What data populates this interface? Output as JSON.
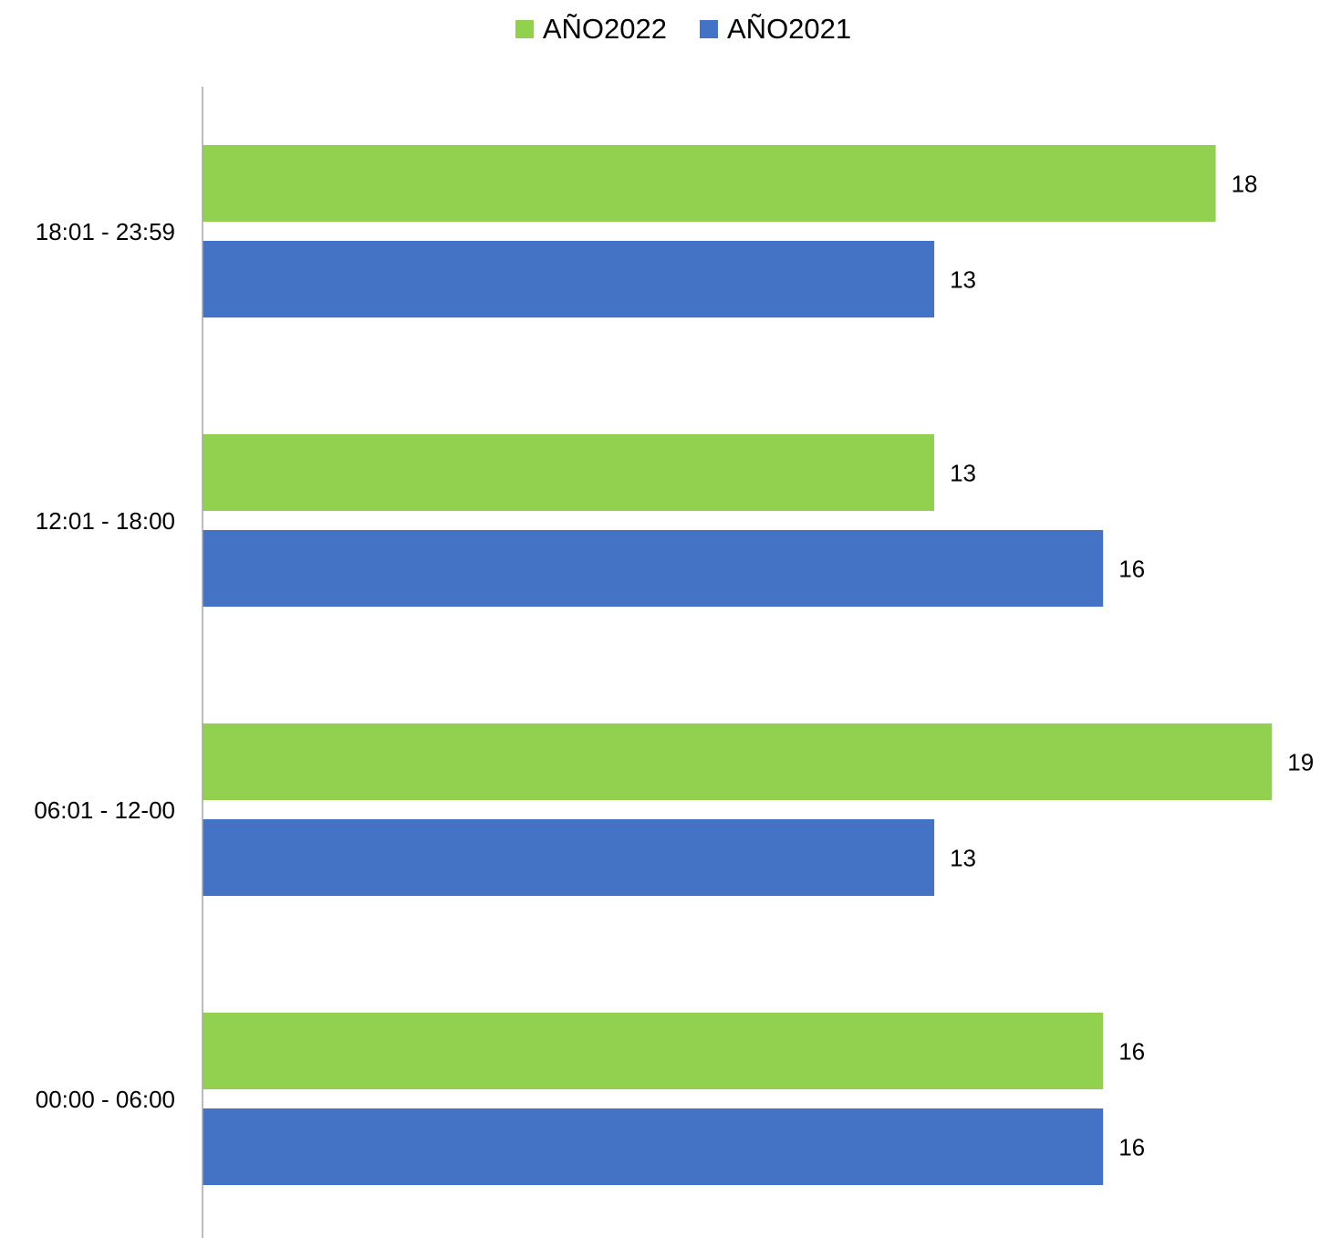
{
  "chart_data": {
    "type": "bar",
    "orientation": "horizontal",
    "categories": [
      "18:01 - 23:59",
      "12:01 - 18:00",
      "06:01 - 12-00",
      "00:00 - 06:00"
    ],
    "series": [
      {
        "name": "AÑO2022",
        "color": "#92d050",
        "values": [
          18,
          13,
          19,
          16
        ]
      },
      {
        "name": "AÑO2021",
        "color": "#4472c4",
        "values": [
          13,
          16,
          13,
          16
        ]
      }
    ],
    "legend_position": "top-center",
    "data_labels": true,
    "grid": false,
    "xlim": [
      0,
      19
    ]
  }
}
